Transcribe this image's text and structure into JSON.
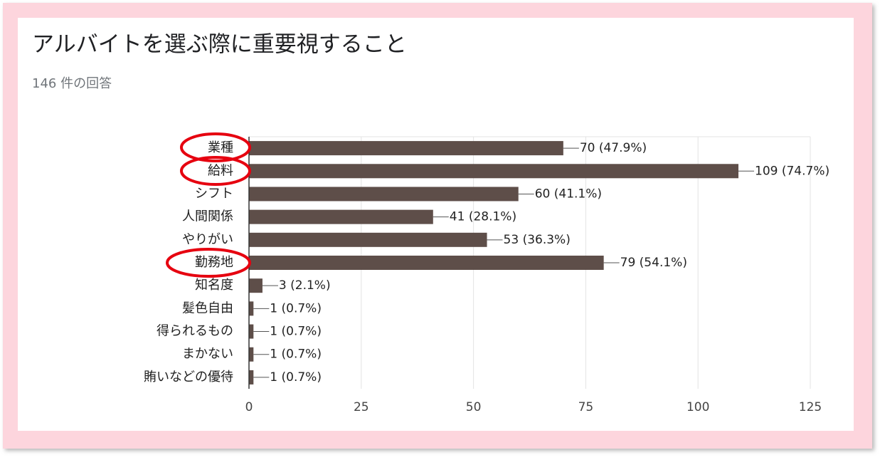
{
  "chart_data": {
    "type": "bar",
    "orientation": "horizontal",
    "title": "アルバイトを選ぶ際に重要視すること",
    "subtitle": "146 件の回答",
    "categories": [
      "業種",
      "給料",
      "シフト",
      "人間関係",
      "やりがい",
      "勤務地",
      "知名度",
      "髪色自由",
      "得られるもの",
      "まかない",
      "賄いなどの優待"
    ],
    "values": [
      70,
      109,
      60,
      41,
      53,
      79,
      3,
      1,
      1,
      1,
      1
    ],
    "value_labels": [
      "70 (47.9%)",
      "109 (74.7%)",
      "60 (41.1%)",
      "41 (28.1%)",
      "53 (36.3%)",
      "79 (54.1%)",
      "3 (2.1%)",
      "1 (0.7%)",
      "1 (0.7%)",
      "1 (0.7%)",
      "1 (0.7%)"
    ],
    "color": "#5e4e49",
    "xlim": [
      0,
      125
    ],
    "xticks": [
      0,
      25,
      50,
      75,
      100,
      125
    ],
    "grid": true
  }
}
